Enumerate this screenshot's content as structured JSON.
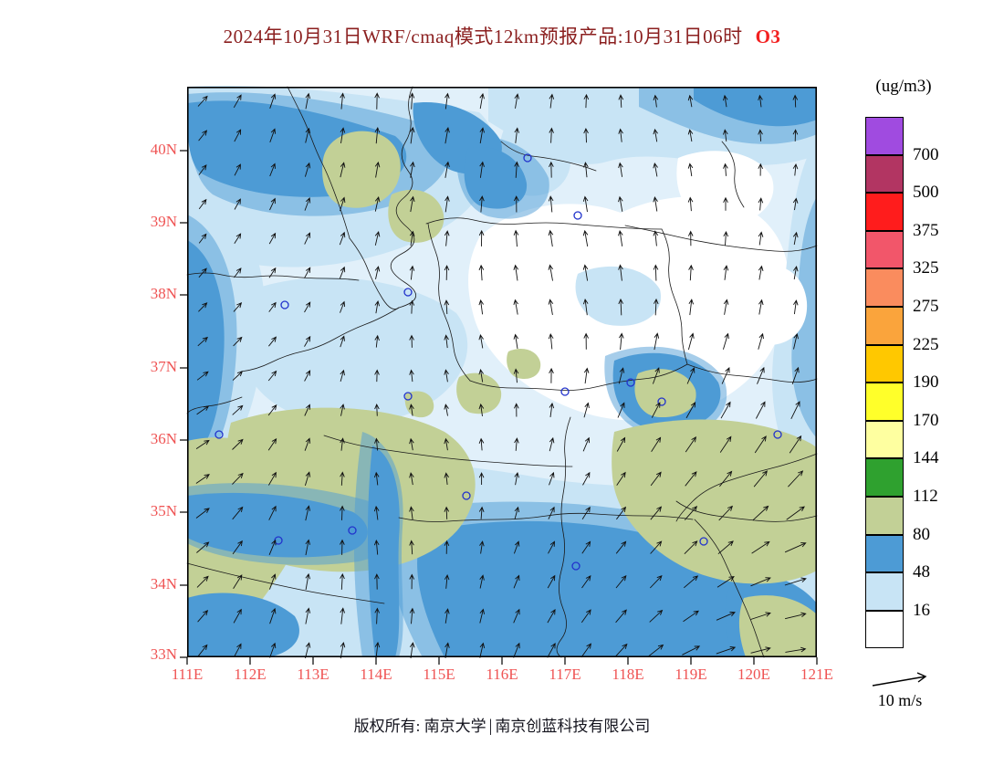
{
  "title": {
    "main": "2024年10月31日WRF/cmaq模式12km预报产品:10月31日06时",
    "species": "O3"
  },
  "map": {
    "lat_labels": [
      "40N",
      "39N",
      "38N",
      "37N",
      "36N",
      "35N",
      "34N",
      "33N"
    ],
    "lon_labels": [
      "111E",
      "112E",
      "113E",
      "114E",
      "115E",
      "116E",
      "117E",
      "118E",
      "119E",
      "120E",
      "121E"
    ],
    "axis_label_color": "#ef5454",
    "marker_color": "#2233cc",
    "boundary_color": "#1a1a1a"
  },
  "legend": {
    "units": "(ug/m3)",
    "values": [
      "700",
      "500",
      "375",
      "325",
      "275",
      "225",
      "190",
      "170",
      "144",
      "112",
      "80",
      "48",
      "16"
    ],
    "colors": [
      "#A04BE0",
      "#B23562",
      "#FF1C1C",
      "#F2566A",
      "#FA8C5E",
      "#FAA43C",
      "#FFC800",
      "#FFFF2A",
      "#FEFFA0",
      "#2FA12F",
      "#C2D096",
      "#4D9BD5",
      "#C8E4F5",
      "#FFFFFF"
    ]
  },
  "wind_scale": {
    "label": "10 m/s"
  },
  "footer": {
    "owner": "版权所有: 南京大学",
    "divider": "|",
    "company": "南京创蓝科技有限公司"
  }
}
